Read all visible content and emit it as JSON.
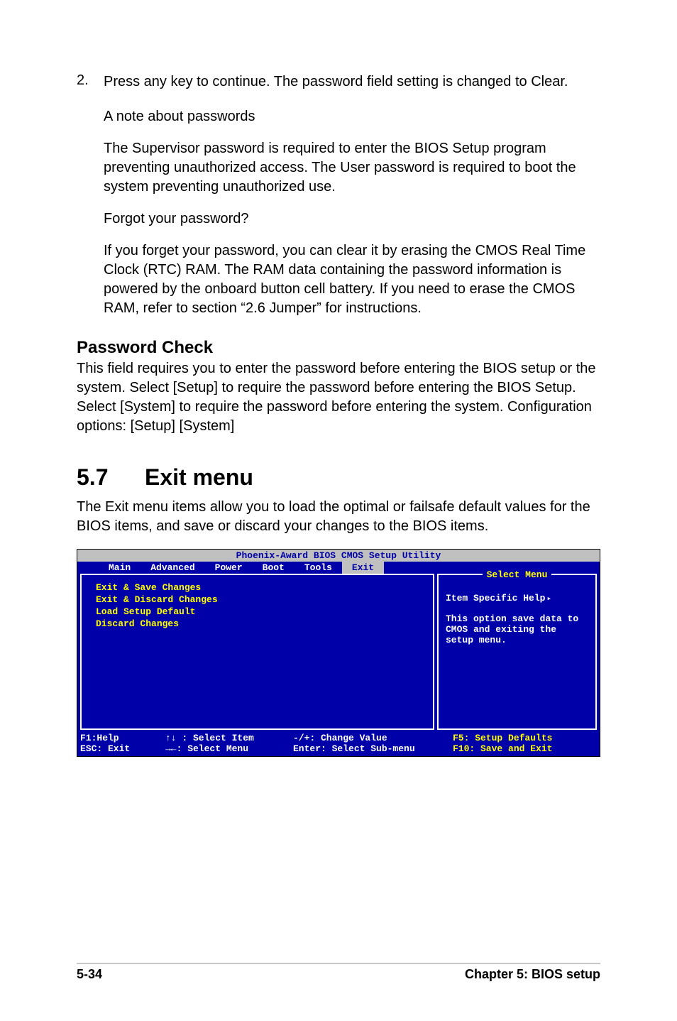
{
  "step": {
    "num": "2.",
    "text": "Press any key to continue. The password field setting is changed to Clear."
  },
  "note": {
    "heading": "A note about passwords",
    "body": "The Supervisor password is required to enter the BIOS Setup program preventing unauthorized access. The User password is required to boot the system preventing unauthorized use."
  },
  "forgot": {
    "heading": "Forgot your password?",
    "body": "If you forget your password, you can clear it by erasing the CMOS Real Time Clock (RTC) RAM. The RAM data containing the password information is powered by the onboard button cell battery. If you need to erase the CMOS RAM, refer to section “2.6 Jumper” for instructions."
  },
  "pwcheck": {
    "heading": "Password Check",
    "body": "This field requires you to enter the password before entering the BIOS setup or the system. Select [Setup] to require the password before entering the BIOS Setup. Select [System] to require the password before entering the system. Configuration options: [Setup] [System]"
  },
  "section": {
    "num": "5.7",
    "title": "Exit menu",
    "intro": "The Exit menu items allow you to load the optimal or failsafe default values for the BIOS items, and save or discard your changes to the BIOS items."
  },
  "bios": {
    "title": "Phoenix-Award BIOS CMOS Setup Utility",
    "tabs": [
      "Main",
      "Advanced",
      "Power",
      "Boot",
      "Tools",
      "Exit"
    ],
    "active_tab": 5,
    "menu_items": [
      "Exit & Save Changes",
      "Exit & Discard Changes",
      "Load Setup Default",
      "Discard Changes"
    ],
    "help_title": "Select Menu",
    "help_line": "Item Specific Help",
    "help_body": "This option save data to CMOS and exiting the setup menu.",
    "footer": {
      "r1c1": "F1:Help",
      "r1c2": "↑↓ : Select Item",
      "r1c3": "-/+: Change Value",
      "r1c4": "F5: Setup Defaults",
      "r2c1": "ESC: Exit",
      "r2c2": "→←: Select Menu",
      "r2c3": "Enter: Select Sub-menu",
      "r2c4": "F10: Save and Exit"
    },
    "colors": {
      "bg": "#0000a8",
      "header_bg": "#c0c0c0",
      "yellow": "#ffff00",
      "white": "#ffffff"
    }
  },
  "footer": {
    "left": "5-34",
    "right": "Chapter 5: BIOS setup"
  }
}
